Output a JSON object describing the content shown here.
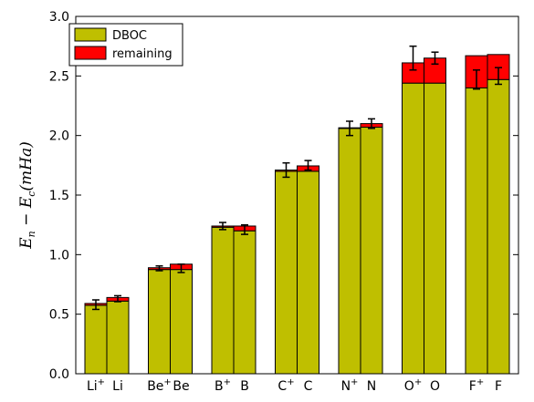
{
  "chart_data": {
    "type": "bar",
    "stacked": true,
    "ylabel": "E_n − E_c (mHa)",
    "ylim": [
      0.0,
      3.0
    ],
    "yticks": [
      "0.0",
      "0.5",
      "1.0",
      "1.5",
      "2.0",
      "2.5",
      "3.0"
    ],
    "yticks_values": [
      0.0,
      0.5,
      1.0,
      1.5,
      2.0,
      2.5,
      3.0
    ],
    "categories": [
      "Li+",
      "Li",
      "Be+",
      "Be",
      "B+",
      "B",
      "C+",
      "C",
      "N+",
      "N",
      "O+",
      "O",
      "F+",
      "F"
    ],
    "group_labels": [
      {
        "base": "Li",
        "sup": "+",
        "neutral": "Li"
      },
      {
        "base": "Be",
        "sup": "+",
        "neutral": "Be"
      },
      {
        "base": "B",
        "sup": "+",
        "neutral": "B"
      },
      {
        "base": "C",
        "sup": "+",
        "neutral": "C"
      },
      {
        "base": "N",
        "sup": "+",
        "neutral": "N"
      },
      {
        "base": "O",
        "sup": "+",
        "neutral": "O"
      },
      {
        "base": "F",
        "sup": "+",
        "neutral": "F"
      }
    ],
    "series": [
      {
        "name": "DBOC",
        "color": "#bfbf00",
        "values": [
          0.575,
          0.61,
          0.875,
          0.875,
          1.23,
          1.2,
          1.7,
          1.7,
          2.06,
          2.07,
          2.44,
          2.44,
          2.4,
          2.47
        ]
      },
      {
        "name": "remaining",
        "color": "#ff0000",
        "values": [
          0.015,
          0.03,
          0.015,
          0.045,
          0.01,
          0.04,
          0.01,
          0.045,
          0.005,
          0.03,
          0.17,
          0.21,
          0.27,
          0.21
        ]
      }
    ],
    "errorbars": {
      "center": [
        0.58,
        0.63,
        0.885,
        0.885,
        1.24,
        1.21,
        1.71,
        1.75,
        2.06,
        2.1,
        2.65,
        2.65,
        2.47,
        2.5
      ],
      "half": [
        0.04,
        0.025,
        0.02,
        0.035,
        0.03,
        0.04,
        0.06,
        0.04,
        0.06,
        0.04,
        0.1,
        0.05,
        0.08,
        0.07
      ]
    },
    "legend": {
      "position": "top-left",
      "entries": [
        "DBOC",
        "remaining"
      ]
    }
  }
}
